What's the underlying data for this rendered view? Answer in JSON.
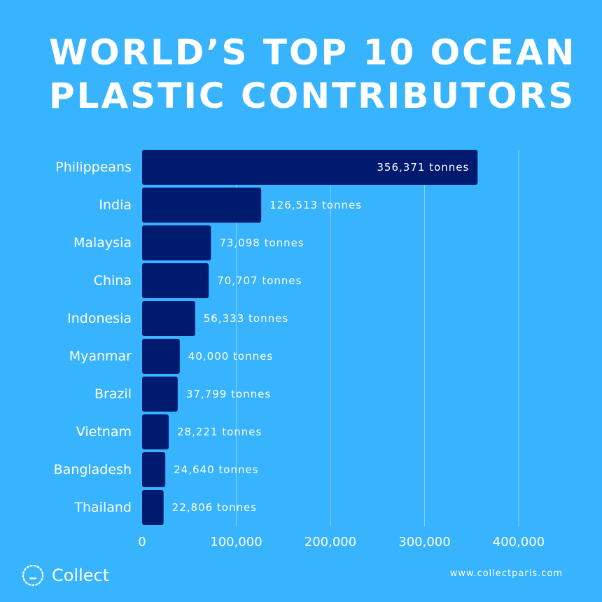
{
  "header": {
    "title_line1": "WORLD’S TOP 10 OCEAN",
    "title_line2": "PLASTIC CONTRIBUTORS"
  },
  "colors": {
    "background": "#38b3fd",
    "bar": "#001a70",
    "text": "#ffffff",
    "grid": "#8dd3ff"
  },
  "chart_data": {
    "type": "bar",
    "orientation": "horizontal",
    "title": "WORLD’S TOP 10 OCEAN PLASTIC CONTRIBUTORS",
    "xlabel": "",
    "ylabel": "",
    "unit": "tonnes",
    "xlim": [
      0,
      400000
    ],
    "grid": true,
    "xticks": [
      0,
      100000,
      200000,
      300000,
      400000
    ],
    "xtick_labels": [
      "0",
      "100,000",
      "200,000",
      "300,000",
      "400,000"
    ],
    "categories": [
      "Philippeans",
      "India",
      "Malaysia",
      "China",
      "Indonesia",
      "Myanmar",
      "Brazil",
      "Vietnam",
      "Bangladesh",
      "Thailand"
    ],
    "values": [
      356371,
      126513,
      73098,
      70707,
      56333,
      40000,
      37799,
      28221,
      24640,
      22806
    ],
    "data_labels": [
      "356,371 tonnes",
      "126,513 tonnes",
      "73,098 tonnes",
      "70,707 tonnes",
      "56,333 tonnes",
      "40,000 tonnes",
      "37,799 tonnes",
      "28,221 tonnes",
      "24,640 tonnes",
      "22,806 tonnes"
    ]
  },
  "footer": {
    "logo_icon": "dotted-circle-logo-icon",
    "brand": "Collect",
    "website": "www.collectparis.com"
  }
}
